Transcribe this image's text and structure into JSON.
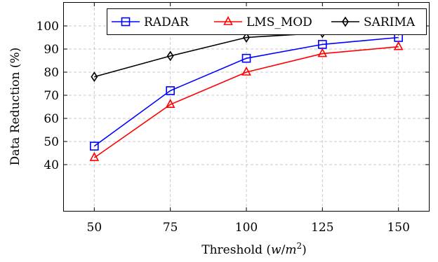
{
  "chart_data": {
    "type": "line",
    "xlabel": "Threshold (w/m²)",
    "ylabel": "Data Reduction (%)",
    "xlim": [
      40,
      160
    ],
    "ylim": [
      20,
      110
    ],
    "x_ticks": [
      50,
      75,
      100,
      125,
      150
    ],
    "y_ticks": [
      40,
      50,
      60,
      70,
      80,
      90,
      100
    ],
    "grid": true,
    "legend_position": "top-right",
    "series": [
      {
        "name": "RADAR",
        "color": "#0000ff",
        "marker": "square",
        "x": [
          50,
          75,
          100,
          125,
          150
        ],
        "values": [
          48,
          72,
          86,
          92,
          95
        ]
      },
      {
        "name": "LMS_MOD",
        "color": "#ff0000",
        "marker": "triangle",
        "x": [
          50,
          75,
          100,
          125,
          150
        ],
        "values": [
          43,
          66,
          80,
          88,
          91
        ]
      },
      {
        "name": "SARIMA",
        "color": "#000000",
        "marker": "diamond",
        "x": [
          50,
          75,
          100,
          125,
          150
        ],
        "values": [
          78,
          87,
          95,
          97,
          98
        ]
      }
    ]
  },
  "axes": {
    "xlabel_prefix": "Threshold (",
    "xlabel_unit_w": "w",
    "xlabel_unit_m": "m",
    "xlabel_exp": "2",
    "xlabel_suffix": ")",
    "ylabel": "Data Reduction (%)"
  }
}
